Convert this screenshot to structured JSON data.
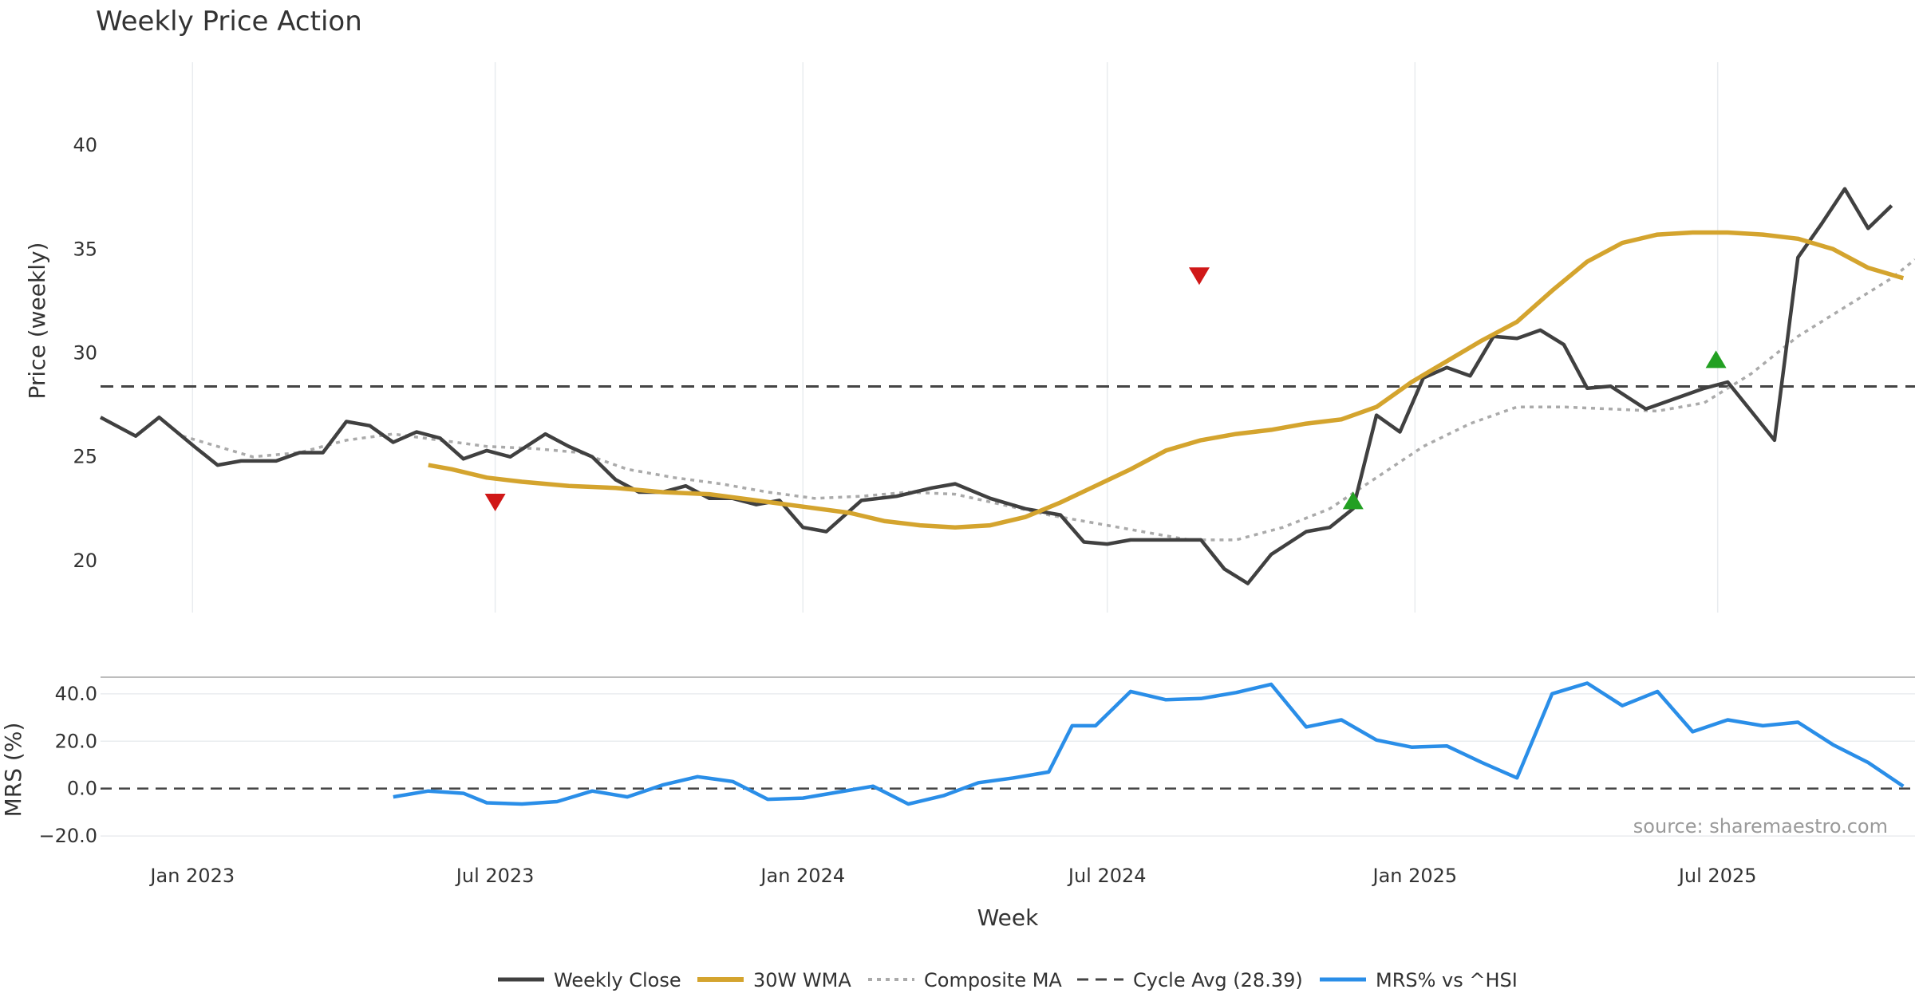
{
  "chart_data": {
    "type": "line",
    "title": "Weekly Price Action",
    "xlabel": "Week",
    "x_range": [
      "2022-11-07",
      "2025-10-27"
    ],
    "x_ticks": [
      {
        "date": "2023-01-01",
        "label": "Jan 2023"
      },
      {
        "date": "2023-07-01",
        "label": "Jul 2023"
      },
      {
        "date": "2024-01-01",
        "label": "Jan 2024"
      },
      {
        "date": "2024-07-01",
        "label": "Jul 2024"
      },
      {
        "date": "2025-01-01",
        "label": "Jan 2025"
      },
      {
        "date": "2025-07-01",
        "label": "Jul 2025"
      }
    ],
    "price_panel": {
      "ylabel": "Price (weekly)",
      "ylim": [
        17.5,
        44
      ],
      "y_ticks": [
        20,
        25,
        30,
        35,
        40
      ],
      "y_tick_labels": [
        "20",
        "25",
        "30",
        "35",
        "40"
      ],
      "weekly_close": [
        [
          "2022-11-07",
          26.9
        ],
        [
          "2022-11-28",
          26.0
        ],
        [
          "2022-12-12",
          26.9
        ],
        [
          "2023-01-02",
          25.5
        ],
        [
          "2023-01-16",
          24.6
        ],
        [
          "2023-01-30",
          24.8
        ],
        [
          "2023-02-20",
          24.8
        ],
        [
          "2023-03-06",
          25.2
        ],
        [
          "2023-03-20",
          25.2
        ],
        [
          "2023-04-03",
          26.7
        ],
        [
          "2023-04-17",
          26.5
        ],
        [
          "2023-05-01",
          25.7
        ],
        [
          "2023-05-15",
          26.2
        ],
        [
          "2023-05-29",
          25.9
        ],
        [
          "2023-06-12",
          24.9
        ],
        [
          "2023-06-26",
          25.3
        ],
        [
          "2023-07-10",
          25.0
        ],
        [
          "2023-07-31",
          26.1
        ],
        [
          "2023-08-14",
          25.5
        ],
        [
          "2023-08-28",
          25.0
        ],
        [
          "2023-09-11",
          23.9
        ],
        [
          "2023-09-25",
          23.3
        ],
        [
          "2023-10-09",
          23.3
        ],
        [
          "2023-10-23",
          23.6
        ],
        [
          "2023-11-06",
          23.0
        ],
        [
          "2023-11-20",
          23.0
        ],
        [
          "2023-12-04",
          22.7
        ],
        [
          "2023-12-18",
          22.9
        ],
        [
          "2024-01-01",
          21.6
        ],
        [
          "2024-01-15",
          21.4
        ],
        [
          "2024-02-05",
          22.9
        ],
        [
          "2024-02-26",
          23.1
        ],
        [
          "2024-03-18",
          23.5
        ],
        [
          "2024-04-01",
          23.7
        ],
        [
          "2024-04-22",
          23.0
        ],
        [
          "2024-05-13",
          22.5
        ],
        [
          "2024-06-03",
          22.2
        ],
        [
          "2024-06-17",
          20.9
        ],
        [
          "2024-07-01",
          20.8
        ],
        [
          "2024-07-15",
          21.0
        ],
        [
          "2024-08-05",
          21.0
        ],
        [
          "2024-08-26",
          21.0
        ],
        [
          "2024-09-09",
          19.6
        ],
        [
          "2024-09-23",
          18.9
        ],
        [
          "2024-10-07",
          20.3
        ],
        [
          "2024-10-28",
          21.4
        ],
        [
          "2024-11-11",
          21.6
        ],
        [
          "2024-11-25",
          22.5
        ],
        [
          "2024-12-09",
          27.0
        ],
        [
          "2024-12-23",
          26.2
        ],
        [
          "2025-01-06",
          28.8
        ],
        [
          "2025-01-20",
          29.3
        ],
        [
          "2025-02-03",
          28.9
        ],
        [
          "2025-02-17",
          30.8
        ],
        [
          "2025-03-03",
          30.7
        ],
        [
          "2025-03-17",
          31.1
        ],
        [
          "2025-03-31",
          30.4
        ],
        [
          "2025-04-14",
          28.3
        ],
        [
          "2025-04-28",
          28.4
        ],
        [
          "2025-05-19",
          27.3
        ],
        [
          "2025-06-02",
          27.7
        ],
        [
          "2025-06-23",
          28.3
        ],
        [
          "2025-07-07",
          28.6
        ],
        [
          "2025-07-21",
          27.2
        ],
        [
          "2025-08-04",
          25.8
        ],
        [
          "2025-08-18",
          34.6
        ],
        [
          "2025-09-01",
          36.2
        ],
        [
          "2025-09-15",
          37.9
        ],
        [
          "2025-09-29",
          36.0
        ],
        [
          "2025-10-13",
          37.1
        ]
      ],
      "wma_30w": [
        [
          "2023-05-22",
          24.6
        ],
        [
          "2023-06-05",
          24.4
        ],
        [
          "2023-06-26",
          24.0
        ],
        [
          "2023-07-17",
          23.8
        ],
        [
          "2023-08-14",
          23.6
        ],
        [
          "2023-09-11",
          23.5
        ],
        [
          "2023-10-09",
          23.3
        ],
        [
          "2023-11-06",
          23.2
        ],
        [
          "2023-12-04",
          22.9
        ],
        [
          "2024-01-01",
          22.6
        ],
        [
          "2024-01-29",
          22.3
        ],
        [
          "2024-02-19",
          21.9
        ],
        [
          "2024-03-11",
          21.7
        ],
        [
          "2024-04-01",
          21.6
        ],
        [
          "2024-04-22",
          21.7
        ],
        [
          "2024-05-13",
          22.1
        ],
        [
          "2024-06-03",
          22.8
        ],
        [
          "2024-06-24",
          23.6
        ],
        [
          "2024-07-15",
          24.4
        ],
        [
          "2024-08-05",
          25.3
        ],
        [
          "2024-08-26",
          25.8
        ],
        [
          "2024-09-16",
          26.1
        ],
        [
          "2024-10-07",
          26.3
        ],
        [
          "2024-10-28",
          26.6
        ],
        [
          "2024-11-18",
          26.8
        ],
        [
          "2024-12-09",
          27.4
        ],
        [
          "2024-12-30",
          28.6
        ],
        [
          "2025-01-20",
          29.6
        ],
        [
          "2025-02-10",
          30.6
        ],
        [
          "2025-03-03",
          31.5
        ],
        [
          "2025-03-24",
          33.0
        ],
        [
          "2025-04-14",
          34.4
        ],
        [
          "2025-05-05",
          35.3
        ],
        [
          "2025-05-26",
          35.7
        ],
        [
          "2025-06-16",
          35.8
        ],
        [
          "2025-07-07",
          35.8
        ],
        [
          "2025-07-28",
          35.7
        ],
        [
          "2025-08-18",
          35.5
        ],
        [
          "2025-09-08",
          35.0
        ],
        [
          "2025-09-29",
          34.1
        ],
        [
          "2025-10-20",
          33.6
        ]
      ],
      "composite_ma": [
        [
          "2022-12-26",
          26.0
        ],
        [
          "2023-01-16",
          25.5
        ],
        [
          "2023-02-06",
          25.0
        ],
        [
          "2023-03-06",
          25.2
        ],
        [
          "2023-04-03",
          25.8
        ],
        [
          "2023-05-01",
          26.1
        ],
        [
          "2023-05-29",
          25.8
        ],
        [
          "2023-06-26",
          25.5
        ],
        [
          "2023-07-24",
          25.4
        ],
        [
          "2023-08-21",
          25.2
        ],
        [
          "2023-09-18",
          24.4
        ],
        [
          "2023-10-16",
          24.0
        ],
        [
          "2023-11-13",
          23.7
        ],
        [
          "2023-12-11",
          23.3
        ],
        [
          "2024-01-08",
          23.0
        ],
        [
          "2024-02-05",
          23.1
        ],
        [
          "2024-03-04",
          23.3
        ],
        [
          "2024-04-01",
          23.2
        ],
        [
          "2024-04-29",
          22.7
        ],
        [
          "2024-05-27",
          22.2
        ],
        [
          "2024-06-24",
          21.8
        ],
        [
          "2024-07-22",
          21.4
        ],
        [
          "2024-08-19",
          21.0
        ],
        [
          "2024-09-16",
          21.0
        ],
        [
          "2024-10-14",
          21.6
        ],
        [
          "2024-11-11",
          22.5
        ],
        [
          "2024-12-09",
          24.0
        ],
        [
          "2025-01-06",
          25.5
        ],
        [
          "2025-02-03",
          26.6
        ],
        [
          "2025-03-03",
          27.4
        ],
        [
          "2025-03-31",
          27.4
        ],
        [
          "2025-04-28",
          27.3
        ],
        [
          "2025-05-26",
          27.2
        ],
        [
          "2025-06-23",
          27.6
        ],
        [
          "2025-07-21",
          29.0
        ],
        [
          "2025-08-18",
          30.8
        ],
        [
          "2025-09-15",
          32.2
        ],
        [
          "2025-10-13",
          33.6
        ],
        [
          "2025-10-27",
          34.5
        ]
      ],
      "cycle_avg": {
        "value": 28.39,
        "label": "Cycle Avg (28.39)"
      },
      "buy_signals": [
        [
          "2024-11-25",
          22.9
        ],
        [
          "2025-06-30",
          29.7
        ]
      ],
      "sell_signals": [
        [
          "2023-07-01",
          22.8
        ],
        [
          "2024-08-25",
          33.7
        ]
      ]
    },
    "mrs_panel": {
      "ylabel": "MRS (%)",
      "ylim": [
        -24,
        46
      ],
      "y_ticks": [
        -20,
        0,
        20,
        40
      ],
      "y_tick_labels": [
        "−20.0",
        "0.0",
        "20.0",
        "40.0"
      ],
      "zero_line": 0,
      "mrs_vs_hsi": [
        [
          "2023-05-01",
          -3.5
        ],
        [
          "2023-05-22",
          -1.0
        ],
        [
          "2023-06-12",
          -2.0
        ],
        [
          "2023-06-26",
          -6.0
        ],
        [
          "2023-07-17",
          -6.5
        ],
        [
          "2023-08-07",
          -5.5
        ],
        [
          "2023-08-28",
          -1.0
        ],
        [
          "2023-09-18",
          -3.5
        ],
        [
          "2023-10-09",
          1.5
        ],
        [
          "2023-10-30",
          5.0
        ],
        [
          "2023-11-20",
          3.0
        ],
        [
          "2023-12-11",
          -4.5
        ],
        [
          "2024-01-01",
          -4.0
        ],
        [
          "2024-01-22",
          -1.5
        ],
        [
          "2024-02-12",
          1.0
        ],
        [
          "2024-03-04",
          -6.5
        ],
        [
          "2024-03-25",
          -3.0
        ],
        [
          "2024-04-15",
          2.5
        ],
        [
          "2024-05-06",
          4.5
        ],
        [
          "2024-05-27",
          7.0
        ],
        [
          "2024-06-10",
          26.5
        ],
        [
          "2024-06-24",
          26.5
        ],
        [
          "2024-07-15",
          41.0
        ],
        [
          "2024-08-05",
          37.5
        ],
        [
          "2024-08-26",
          38.0
        ],
        [
          "2024-09-16",
          40.5
        ],
        [
          "2024-10-07",
          44.0
        ],
        [
          "2024-10-28",
          26.0
        ],
        [
          "2024-11-18",
          29.0
        ],
        [
          "2024-12-09",
          20.5
        ],
        [
          "2024-12-30",
          17.5
        ],
        [
          "2025-01-20",
          18.0
        ],
        [
          "2025-02-10",
          11.0
        ],
        [
          "2025-03-03",
          4.5
        ],
        [
          "2025-03-24",
          40.0
        ],
        [
          "2025-04-14",
          44.5
        ],
        [
          "2025-05-05",
          35.0
        ],
        [
          "2025-05-26",
          41.0
        ],
        [
          "2025-06-16",
          24.0
        ],
        [
          "2025-07-07",
          29.0
        ],
        [
          "2025-07-28",
          26.5
        ],
        [
          "2025-08-18",
          28.0
        ],
        [
          "2025-09-08",
          18.5
        ],
        [
          "2025-09-29",
          11.0
        ],
        [
          "2025-10-20",
          1.0
        ]
      ]
    },
    "legend": {
      "position": "bottom-center",
      "entries": [
        "Weekly Close",
        "30W WMA",
        "Composite MA",
        "Cycle Avg (28.39)",
        "MRS% vs ^HSI"
      ]
    },
    "source_label": "source: sharemaestro.com",
    "colors": {
      "close": "#404040",
      "wma": "#d4a42e",
      "composite": "#aaaaaa",
      "cycle": "#444444",
      "mrs": "#2a8ee8",
      "buy": "#22a022",
      "sell": "#d01818",
      "grid": "#e9ecef"
    }
  }
}
